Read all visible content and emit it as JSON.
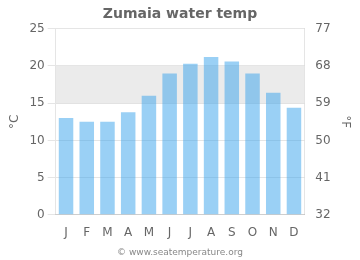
{
  "chart_data": {
    "type": "bar",
    "title": "Zumaia water temp",
    "categories": [
      "J",
      "F",
      "M",
      "A",
      "M",
      "J",
      "J",
      "A",
      "S",
      "O",
      "N",
      "D"
    ],
    "values": [
      13.0,
      12.5,
      12.5,
      13.8,
      16.0,
      19.0,
      20.3,
      21.2,
      20.6,
      19.0,
      16.4,
      14.4
    ],
    "ylim": [
      0,
      25
    ],
    "yticks": [
      0,
      5,
      10,
      15,
      20,
      25
    ],
    "y2lim": [
      32,
      77
    ],
    "y2ticks": [
      32,
      41,
      50,
      59,
      68,
      77
    ],
    "ylabel": "°C",
    "y2label": "°F",
    "band": [
      15,
      20
    ],
    "annotations": [
      "© www.seatemperature.org"
    ],
    "grid": true
  }
}
